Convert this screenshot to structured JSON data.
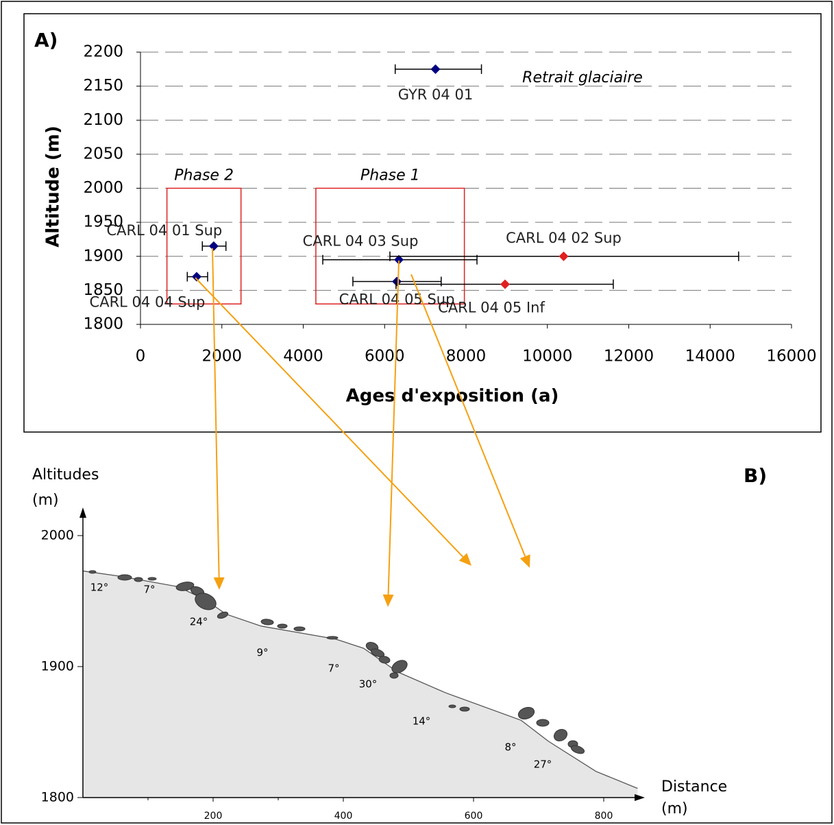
{
  "chart_data": [
    {
      "type": "scatter",
      "panel_label": "A)",
      "x_label": "Ages d'exposition (a)",
      "y_label": "Altitude (m)",
      "xlim": [
        0,
        16000
      ],
      "xticks": [
        0,
        2000,
        4000,
        6000,
        8000,
        10000,
        12000,
        14000,
        16000
      ],
      "ylim": [
        1800,
        2200
      ],
      "yticks": [
        1800,
        1850,
        1900,
        1950,
        2000,
        2050,
        2100,
        2150,
        2200
      ],
      "grid": true,
      "points": [
        {
          "label": "GYR 04 01",
          "x": 7250,
          "xmin": 6260,
          "xmax": 8380,
          "y": 2175,
          "color": "#000080"
        },
        {
          "label": "CARL 04 01 Sup",
          "x": 1800,
          "xmin": 1520,
          "xmax": 2100,
          "y": 1915,
          "color": "#000080"
        },
        {
          "label": "CARL 04 04 Sup",
          "x": 1380,
          "xmin": 1150,
          "xmax": 1650,
          "y": 1870,
          "color": "#000080"
        },
        {
          "label": "CARL 04 03 Sup",
          "x": 6350,
          "xmin": 4480,
          "xmax": 8270,
          "y": 1895,
          "color": "#000080"
        },
        {
          "label": "CARL 04 02 Sup",
          "x": 10400,
          "xmin": 6130,
          "xmax": 14700,
          "y": 1900,
          "color": "#e02020"
        },
        {
          "label": "CARL 04 05 Sup",
          "x": 6300,
          "xmin": 5220,
          "xmax": 7390,
          "y": 1863,
          "color": "#000080"
        },
        {
          "label": "CARL 04 05 Inf",
          "x": 8960,
          "xmin": 6280,
          "xmax": 11620,
          "y": 1859,
          "color": "#e02020"
        }
      ],
      "regions": [
        {
          "label": "Phase 2",
          "x": [
            650,
            2470
          ],
          "y": [
            1830,
            2000
          ],
          "color": "#dd2222"
        },
        {
          "label": "Phase 1",
          "x": [
            4310,
            7960
          ],
          "y": [
            1830,
            2000
          ],
          "color": "#dd2222"
        }
      ],
      "annotations": [
        "Retrait glaciaire"
      ]
    },
    {
      "type": "line",
      "panel_label": "B)",
      "x_label": [
        "Distance",
        "(m)"
      ],
      "y_label": [
        "Altitudes",
        "(m)"
      ],
      "xlim": [
        0,
        860
      ],
      "xticks": [
        200,
        400,
        600,
        800
      ],
      "ylim": [
        1800,
        2000
      ],
      "yticks": [
        1800,
        1900,
        2000
      ],
      "x": [
        0,
        57,
        146,
        188,
        220,
        273,
        388,
        431,
        483,
        557,
        673,
        715,
        788,
        852
      ],
      "values": [
        1973,
        1969,
        1961,
        1951,
        1940,
        1931,
        1921,
        1914,
        1896,
        1880,
        1859,
        1843,
        1820,
        1807
      ],
      "color": "#555555",
      "fill": "#e6e6e6",
      "annotations": [
        "12°",
        "7°",
        "24°",
        "9°",
        "7°",
        "30°",
        "14°",
        "8°",
        "27°"
      ]
    }
  ]
}
